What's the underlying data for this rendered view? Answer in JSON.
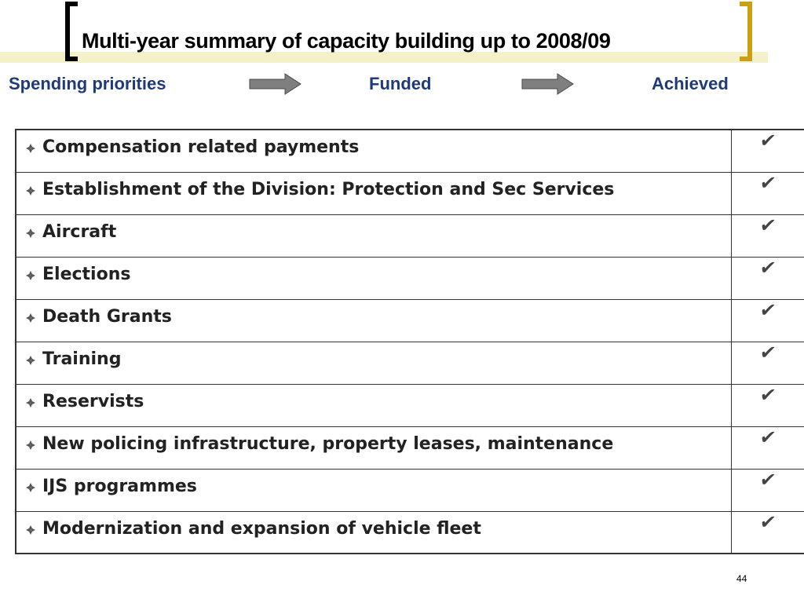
{
  "slide": {
    "title": "Multi-year summary of capacity building up to 2008/09",
    "page_number": "44"
  },
  "flow": {
    "step1": "Spending priorities",
    "step2": "Funded",
    "step3": "Achieved",
    "arrow_icon": "right-arrow-icon"
  },
  "table": {
    "bullet_icon": "diamond-bullet-icon",
    "check_icon": "checkmark-icon",
    "rows": [
      {
        "label": "Compensation related payments",
        "check": "✔"
      },
      {
        "label": "Establishment of the Division: Protection and Sec Services",
        "check": "✔"
      },
      {
        "label": "Aircraft",
        "check": "✔"
      },
      {
        "label": "Elections",
        "check": "✔"
      },
      {
        "label": "Death Grants",
        "check": "✔"
      },
      {
        "label": "Training",
        "check": "✔"
      },
      {
        "label": "Reservists",
        "check": "✔"
      },
      {
        "label": "New policing infrastructure, property leases, maintenance",
        "check": "✔"
      },
      {
        "label": "IJS programmes",
        "check": "✔"
      },
      {
        "label": "Modernization and expansion of vehicle fleet",
        "check": "✔"
      }
    ]
  },
  "colors": {
    "title_text": "#000000",
    "flow_text": "#1f3a7a",
    "left_bracket": "#000000",
    "right_bracket": "#c9a114",
    "title_band": "#f4f1c9",
    "arrow_fill": "#7f7f7f"
  }
}
